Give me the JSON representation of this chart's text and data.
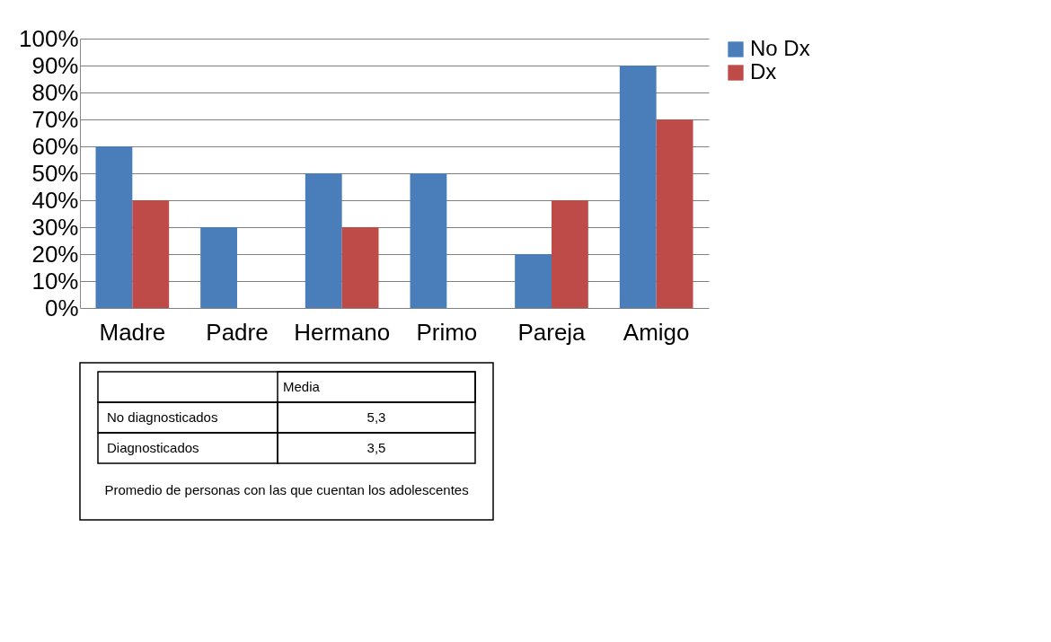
{
  "chart_data": {
    "type": "bar",
    "categories": [
      "Madre",
      "Padre",
      "Hermano",
      "Primo",
      "Pareja",
      "Amigo"
    ],
    "series": [
      {
        "name": "No Dx",
        "color": "#4a7ebb",
        "values": [
          60,
          30,
          50,
          50,
          20,
          90
        ]
      },
      {
        "name": "Dx",
        "color": "#be4b48",
        "values": [
          40,
          null,
          30,
          null,
          40,
          70
        ]
      }
    ],
    "ylim": [
      0,
      100
    ],
    "yticks": [
      {
        "value": 0,
        "label": "0%"
      },
      {
        "value": 10,
        "label": "10%"
      },
      {
        "value": 20,
        "label": "20%"
      },
      {
        "value": 30,
        "label": "30%"
      },
      {
        "value": 40,
        "label": "40%"
      },
      {
        "value": 50,
        "label": "50%"
      },
      {
        "value": 60,
        "label": "60%"
      },
      {
        "value": 70,
        "label": "70%"
      },
      {
        "value": 80,
        "label": "80%"
      },
      {
        "value": 90,
        "label": "90%"
      },
      {
        "value": 100,
        "label": "100%"
      }
    ],
    "grid": "y",
    "legend": "right",
    "annotations": [
      "Media",
      "No diagnosticados",
      "5,3",
      "Diagnosticados",
      "3,5",
      "Promedio de personas con las que cuentan los adolescentes"
    ]
  }
}
